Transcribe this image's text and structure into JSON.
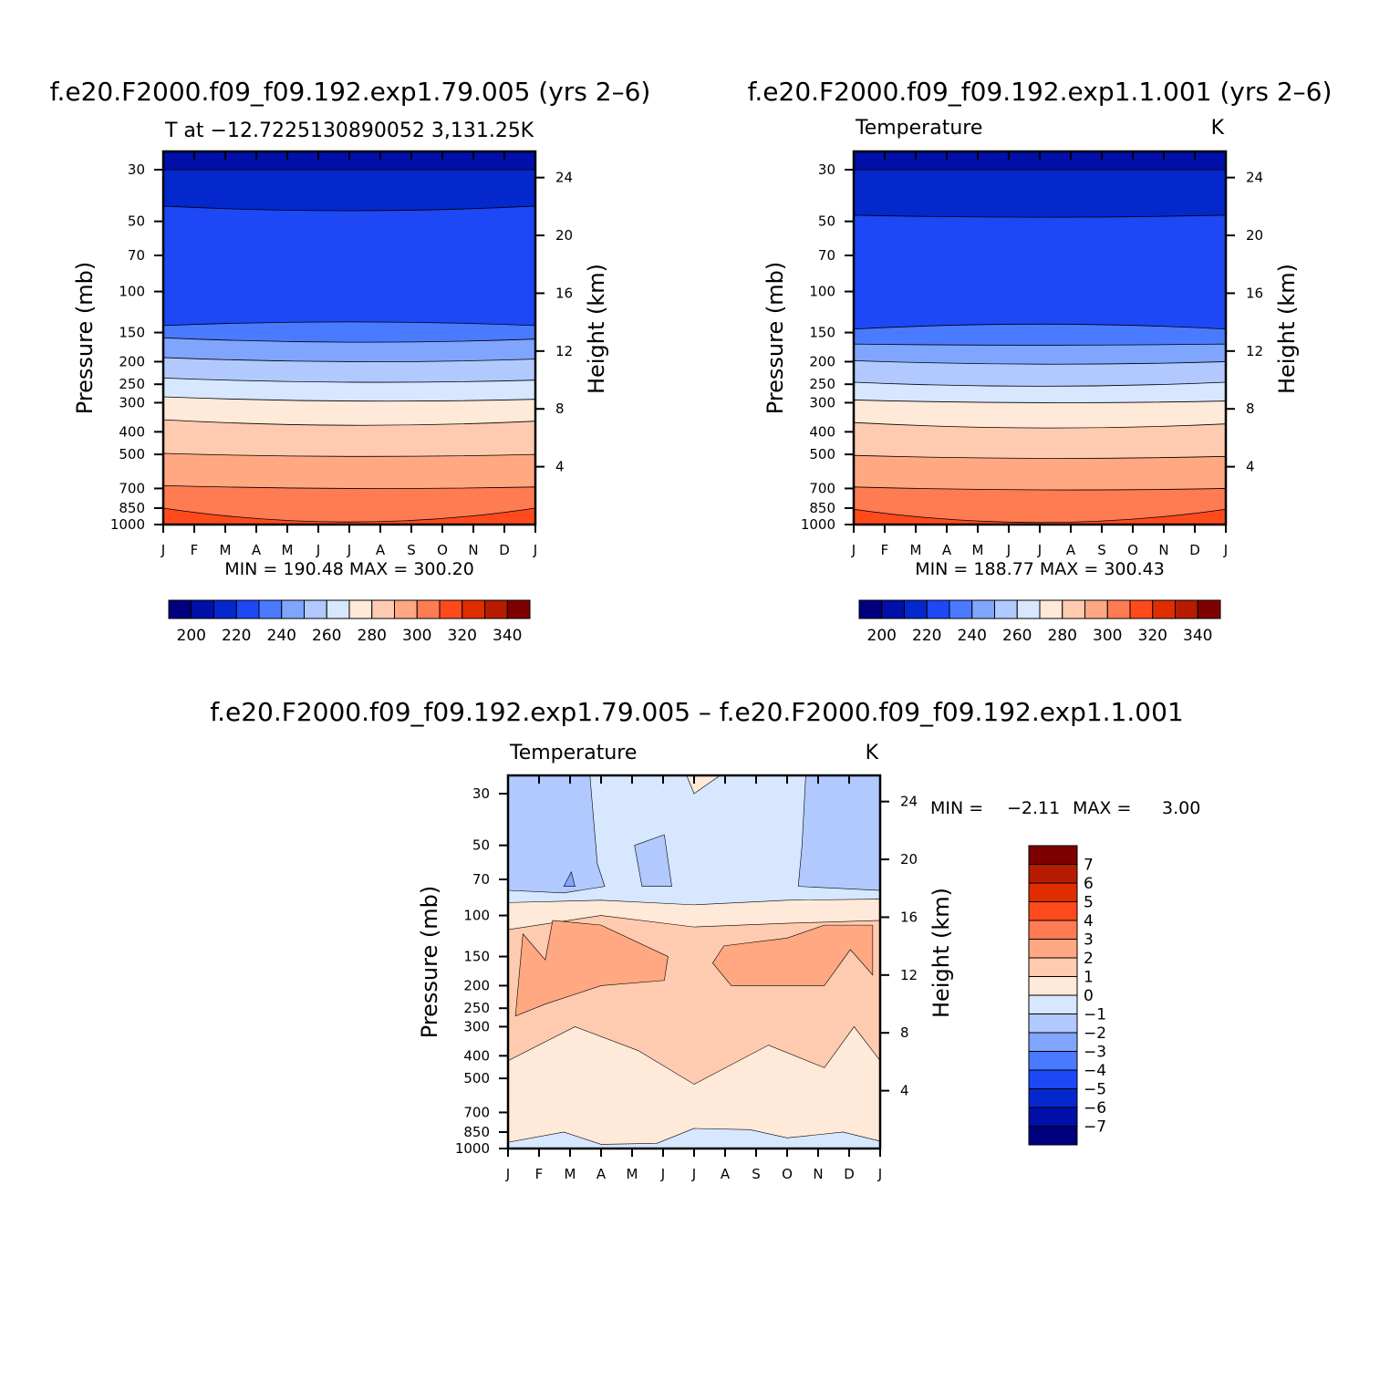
{
  "chart_data": [
    {
      "type": "contour",
      "title": "f.e20.F2000.f09_f09.192.exp1.79.005 (yrs 2–6)",
      "subtitle_left": "T at −12.7225130890052 3,131.25",
      "subtitle_right": "K",
      "ylabel_left": "Pressure (mb)",
      "ylabel_right": "Height (km)",
      "months": [
        "J",
        "F",
        "M",
        "A",
        "M",
        "J",
        "J",
        "A",
        "S",
        "O",
        "N",
        "D",
        "J"
      ],
      "pressure_ticks": [
        "30",
        "50",
        "70",
        "100",
        "150",
        "200",
        "250",
        "300",
        "400",
        "500",
        "700",
        "850",
        "1000"
      ],
      "height_ticks": [
        "24",
        "20",
        "16",
        "12",
        "8",
        "4"
      ],
      "stats": "MIN = 190.48 MAX = 300.20",
      "colorbar": {
        "orientation": "horizontal",
        "labels": [
          "200",
          "220",
          "240",
          "260",
          "280",
          "300",
          "320",
          "340"
        ],
        "colors": [
          "#00007f",
          "#0010a8",
          "#0528cc",
          "#1e47f5",
          "#4a7aff",
          "#7fa5ff",
          "#b1c9ff",
          "#d6e7ff",
          "#ffe9d8",
          "#ffcbb0",
          "#ffa882",
          "#ff7b52",
          "#ff4a1e",
          "#e02d00",
          "#b71c00",
          "#7f0000"
        ]
      },
      "levels": [
        {
          "temp": 200,
          "left": 30,
          "mid": 30,
          "right": 30
        },
        {
          "temp": 210,
          "left": 43,
          "mid": 45,
          "right": 43
        },
        {
          "temp": 220,
          "left": 140,
          "mid": 135,
          "right": 140
        },
        {
          "temp": 230,
          "left": 158,
          "mid": 165,
          "right": 160
        },
        {
          "temp": 240,
          "left": 192,
          "mid": 200,
          "right": 195
        },
        {
          "temp": 250,
          "left": 235,
          "mid": 245,
          "right": 240
        },
        {
          "temp": 260,
          "left": 283,
          "mid": 295,
          "right": 290
        },
        {
          "temp": 270,
          "left": 355,
          "mid": 375,
          "right": 360
        },
        {
          "temp": 280,
          "left": 495,
          "mid": 510,
          "right": 500
        },
        {
          "temp": 290,
          "left": 680,
          "mid": 700,
          "right": 690
        },
        {
          "temp": 300,
          "left": 850,
          "mid": 975,
          "right": 850
        }
      ]
    },
    {
      "type": "contour",
      "title": "f.e20.F2000.f09_f09.192.exp1.1.001 (yrs 2–6)",
      "subtitle_left": "Temperature",
      "subtitle_right": "K",
      "ylabel_left": "Pressure (mb)",
      "ylabel_right": "Height (km)",
      "months": [
        "J",
        "F",
        "M",
        "A",
        "M",
        "J",
        "J",
        "A",
        "S",
        "O",
        "N",
        "D",
        "J"
      ],
      "pressure_ticks": [
        "30",
        "50",
        "70",
        "100",
        "150",
        "200",
        "250",
        "300",
        "400",
        "500",
        "700",
        "850",
        "1000"
      ],
      "height_ticks": [
        "24",
        "20",
        "16",
        "12",
        "8",
        "4"
      ],
      "stats": "MIN = 188.77 MAX = 300.43",
      "colorbar": {
        "orientation": "horizontal",
        "labels": [
          "200",
          "220",
          "240",
          "260",
          "280",
          "300",
          "320",
          "340"
        ],
        "colors": [
          "#00007f",
          "#0010a8",
          "#0528cc",
          "#1e47f5",
          "#4a7aff",
          "#7fa5ff",
          "#b1c9ff",
          "#d6e7ff",
          "#ffe9d8",
          "#ffcbb0",
          "#ffa882",
          "#ff7b52",
          "#ff4a1e",
          "#e02d00",
          "#b71c00",
          "#7f0000"
        ]
      },
      "levels": [
        {
          "temp": 200,
          "left": 30,
          "mid": 30,
          "right": 30
        },
        {
          "temp": 210,
          "left": 47,
          "mid": 48,
          "right": 47
        },
        {
          "temp": 220,
          "left": 145,
          "mid": 138,
          "right": 145
        },
        {
          "temp": 230,
          "left": 168,
          "mid": 170,
          "right": 168
        },
        {
          "temp": 240,
          "left": 198,
          "mid": 205,
          "right": 200
        },
        {
          "temp": 250,
          "left": 245,
          "mid": 255,
          "right": 245
        },
        {
          "temp": 260,
          "left": 292,
          "mid": 300,
          "right": 295
        },
        {
          "temp": 270,
          "left": 365,
          "mid": 385,
          "right": 370
        },
        {
          "temp": 280,
          "left": 505,
          "mid": 520,
          "right": 510
        },
        {
          "temp": 290,
          "left": 690,
          "mid": 710,
          "right": 700
        },
        {
          "temp": 300,
          "left": 860,
          "mid": 980,
          "right": 860
        }
      ]
    },
    {
      "type": "contour",
      "title": "f.e20.F2000.f09_f09.192.exp1.79.005 – f.e20.F2000.f09_f09.192.exp1.1.001",
      "subtitle_left": "Temperature",
      "subtitle_right": "K",
      "ylabel_left": "Pressure (mb)",
      "ylabel_right": "Height (km)",
      "months": [
        "J",
        "F",
        "M",
        "A",
        "M",
        "J",
        "J",
        "A",
        "S",
        "O",
        "N",
        "D",
        "J"
      ],
      "pressure_ticks": [
        "30",
        "50",
        "70",
        "100",
        "150",
        "200",
        "250",
        "300",
        "400",
        "500",
        "700",
        "850",
        "1000"
      ],
      "height_ticks": [
        "24",
        "20",
        "16",
        "12",
        "8",
        "4"
      ],
      "stats_min_label": "MIN =",
      "stats_min": "−2.11",
      "stats_max_label": "MAX =",
      "stats_max": "3.00",
      "colorbar": {
        "orientation": "vertical",
        "labels": [
          "7",
          "6",
          "5",
          "4",
          "3",
          "2",
          "1",
          "0",
          "−1",
          "−2",
          "−3",
          "−4",
          "−5",
          "−6",
          "−7"
        ],
        "colors": [
          "#7f0000",
          "#b71c00",
          "#e02d00",
          "#ff4a1e",
          "#ff7b52",
          "#ffa882",
          "#ffcbb0",
          "#ffe9d8",
          "#d6e7ff",
          "#b1c9ff",
          "#7fa5ff",
          "#4a7aff",
          "#1e47f5",
          "#0528cc",
          "#0010a8",
          "#00007f"
        ]
      },
      "field_summary": [
        {
          "value_range": "-2 to -1",
          "region": "Jan-Mar and Nov-Dec, 30-80 mb"
        },
        {
          "value_range": "-1 to 0",
          "region": "Apr-Oct, 30-85 mb; near surface 850-1000 mb"
        },
        {
          "value_range": "0 to 1",
          "region": "85-110 mb band; 300-850 mb"
        },
        {
          "value_range": "1 to 2",
          "region": "110-300 mb band"
        },
        {
          "value_range": "2 to 3",
          "region": "Feb-May and Aug-Dec, 110-200 mb"
        }
      ]
    }
  ]
}
